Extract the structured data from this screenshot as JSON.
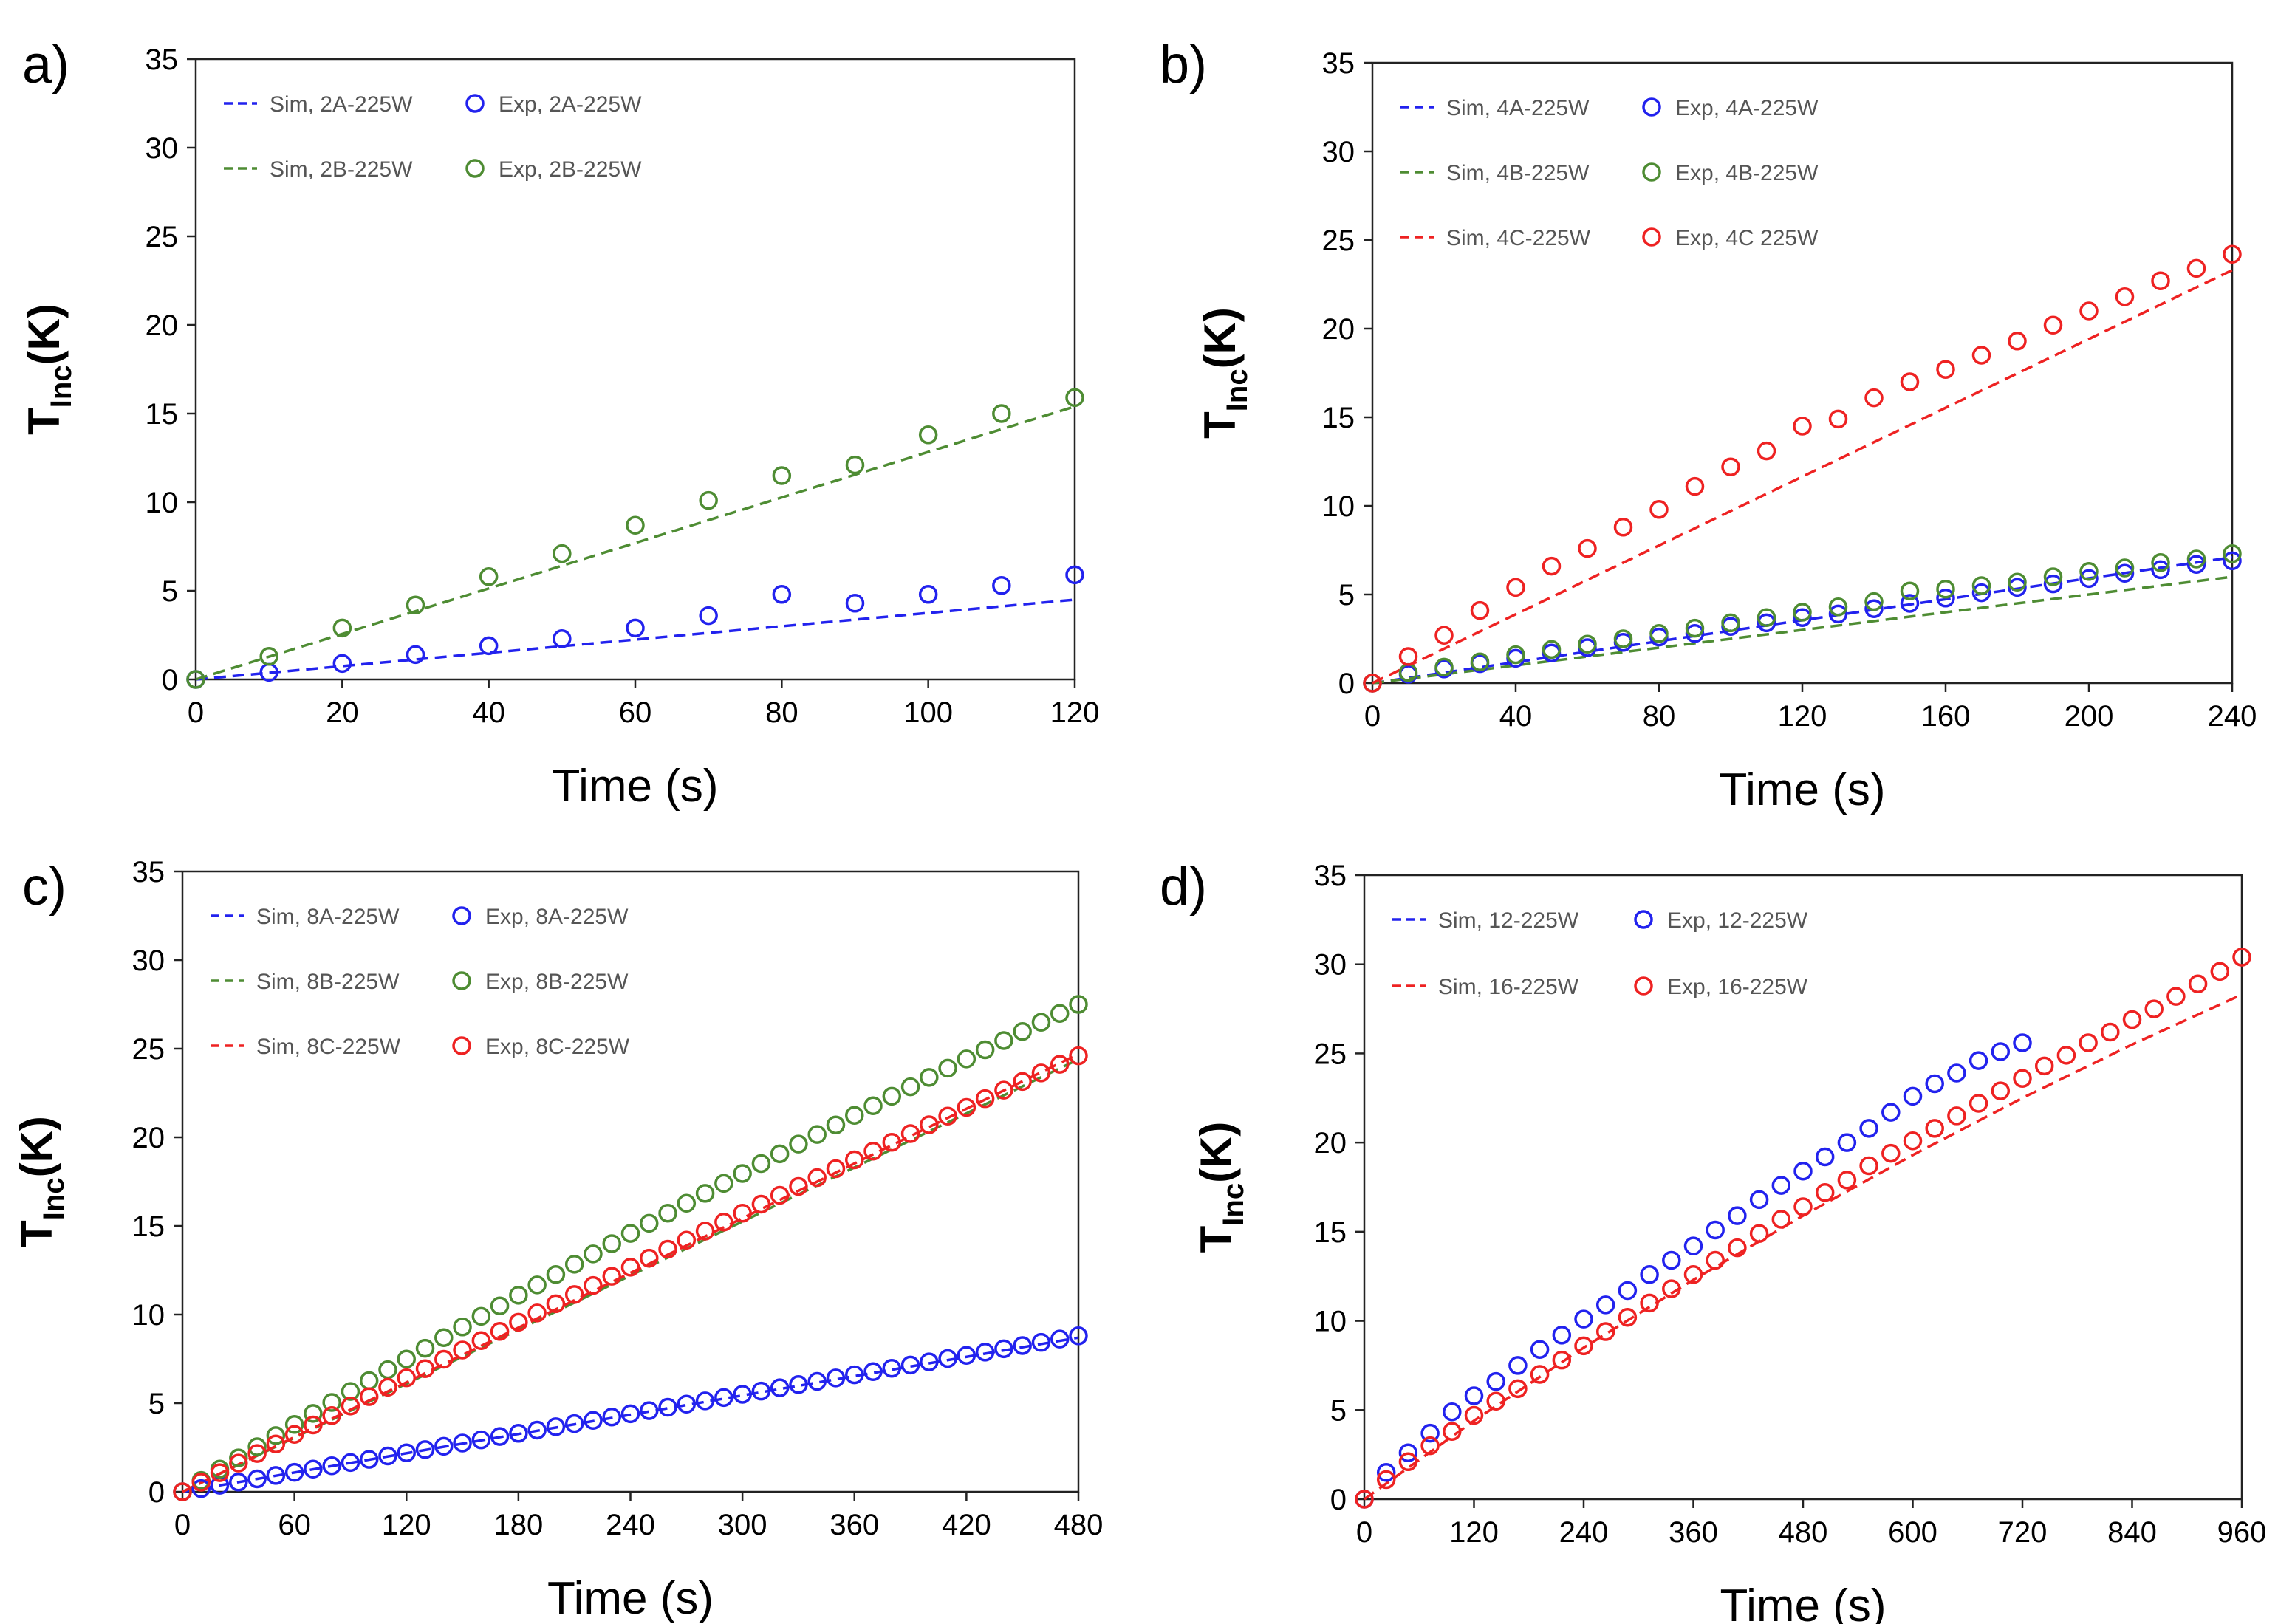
{
  "chart_data": [
    {
      "type": "scatter",
      "panel_label": "a)",
      "title": "",
      "xlabel": "Time (s)",
      "ylabel": {
        "main": "T",
        "sub": "Inc",
        "rest": "(K)"
      },
      "xlim": [
        0,
        120
      ],
      "ylim": [
        0,
        35
      ],
      "xticks": [
        0,
        20,
        40,
        60,
        80,
        100,
        120
      ],
      "yticks": [
        0,
        5,
        10,
        15,
        20,
        25,
        30,
        35
      ],
      "legend_location": "top-left",
      "series": [
        {
          "name": "Sim, 2A-225W",
          "kind": "line",
          "color": "#2222ee",
          "x": [
            0,
            120
          ],
          "y": [
            0,
            4.5
          ]
        },
        {
          "name": "Exp, 2A-225W",
          "kind": "points",
          "color": "#2222ee",
          "x": [
            0,
            10,
            20,
            30,
            40,
            50,
            60,
            70,
            80,
            90,
            100,
            110,
            120
          ],
          "y": [
            0,
            0.4,
            0.9,
            1.4,
            1.9,
            2.3,
            2.9,
            3.6,
            4.8,
            4.3,
            4.8,
            5.3,
            5.9
          ]
        },
        {
          "name": "Sim, 2B-225W",
          "kind": "line",
          "color": "#4e8c33",
          "x": [
            0,
            120
          ],
          "y": [
            0,
            15.4
          ]
        },
        {
          "name": "Exp, 2B-225W",
          "kind": "points",
          "color": "#4e8c33",
          "x": [
            0,
            10,
            20,
            30,
            40,
            50,
            60,
            70,
            80,
            90,
            100,
            110,
            120
          ],
          "y": [
            0,
            1.3,
            2.9,
            4.2,
            5.8,
            7.1,
            8.7,
            10.1,
            11.5,
            12.1,
            13.8,
            15.0,
            15.9
          ]
        }
      ]
    },
    {
      "type": "scatter",
      "panel_label": "b)",
      "title": "",
      "xlabel": "Time (s)",
      "ylabel": {
        "main": "T",
        "sub": "Inc",
        "rest": "(K)"
      },
      "xlim": [
        0,
        240
      ],
      "ylim": [
        0,
        35
      ],
      "xticks": [
        0,
        40,
        80,
        120,
        160,
        200,
        240
      ],
      "yticks": [
        0,
        5,
        10,
        15,
        20,
        25,
        30,
        35
      ],
      "legend_location": "top-left",
      "series": [
        {
          "name": "Sim, 4A-225W",
          "kind": "line",
          "color": "#2222ee",
          "x": [
            0,
            240
          ],
          "y": [
            0,
            7.1
          ]
        },
        {
          "name": "Exp, 4A-225W",
          "kind": "points",
          "color": "#2222ee",
          "x": [
            0,
            10,
            20,
            30,
            40,
            50,
            60,
            70,
            80,
            90,
            100,
            110,
            120,
            130,
            140,
            150,
            160,
            170,
            180,
            190,
            200,
            210,
            220,
            230,
            240
          ],
          "y": [
            0,
            0.5,
            0.8,
            1.1,
            1.4,
            1.7,
            2.0,
            2.3,
            2.6,
            2.8,
            3.2,
            3.4,
            3.7,
            3.9,
            4.2,
            4.5,
            4.8,
            5.1,
            5.4,
            5.6,
            5.9,
            6.2,
            6.4,
            6.7,
            6.9
          ]
        },
        {
          "name": "Sim, 4B-225W",
          "kind": "line",
          "color": "#4e8c33",
          "x": [
            0,
            240
          ],
          "y": [
            0,
            6.0
          ]
        },
        {
          "name": "Exp, 4B-225W",
          "kind": "points",
          "color": "#4e8c33",
          "x": [
            0,
            10,
            20,
            30,
            40,
            50,
            60,
            70,
            80,
            90,
            100,
            110,
            120,
            130,
            140,
            150,
            160,
            170,
            180,
            190,
            200,
            210,
            220,
            230,
            240
          ],
          "y": [
            0,
            0.6,
            0.9,
            1.2,
            1.6,
            1.9,
            2.2,
            2.5,
            2.8,
            3.1,
            3.4,
            3.7,
            4.0,
            4.3,
            4.6,
            5.2,
            5.3,
            5.5,
            5.7,
            6.0,
            6.3,
            6.5,
            6.8,
            7.0,
            7.3
          ]
        },
        {
          "name": "Sim, 4C-225W",
          "kind": "line",
          "color": "#ee2222",
          "x": [
            0,
            240
          ],
          "y": [
            0,
            23.3
          ]
        },
        {
          "name": "Exp, 4C 225W",
          "kind": "points",
          "color": "#ee2222",
          "x": [
            0,
            10,
            20,
            30,
            40,
            50,
            60,
            70,
            80,
            90,
            100,
            110,
            120,
            130,
            140,
            150,
            160,
            170,
            180,
            190,
            200,
            210,
            220,
            230,
            240
          ],
          "y": [
            0,
            1.5,
            2.7,
            4.1,
            5.4,
            6.6,
            7.6,
            8.8,
            9.8,
            11.1,
            12.2,
            13.1,
            14.5,
            14.9,
            16.1,
            17.0,
            17.7,
            18.5,
            19.3,
            20.2,
            21.0,
            21.8,
            22.7,
            23.4,
            24.2
          ]
        }
      ]
    },
    {
      "type": "scatter",
      "panel_label": "c)",
      "title": "",
      "xlabel": "Time (s)",
      "ylabel": {
        "main": "T",
        "sub": "Inc",
        "rest": "(K)"
      },
      "xlim": [
        0,
        480
      ],
      "ylim": [
        0,
        35
      ],
      "xticks": [
        0,
        60,
        120,
        180,
        240,
        300,
        360,
        420,
        480
      ],
      "yticks": [
        0,
        5,
        10,
        15,
        20,
        25,
        30,
        35
      ],
      "legend_location": "top-left",
      "series": [
        {
          "name": "Sim, 8A-225W",
          "kind": "line",
          "color": "#2222ee",
          "x": [
            0,
            480
          ],
          "y": [
            0,
            8.7
          ]
        },
        {
          "name": "Exp, 8A-225W",
          "kind": "points",
          "color": "#2222ee",
          "x_start": 0,
          "x_step": 10,
          "y_end": 8.8,
          "y_shape": "linear"
        },
        {
          "name": "Sim, 8B-225W",
          "kind": "line",
          "color": "#4e8c33",
          "x": [
            0,
            480
          ],
          "y": [
            0,
            24.4
          ]
        },
        {
          "name": "Exp, 8B-225W",
          "kind": "points",
          "color": "#4e8c33",
          "x_start": 0,
          "x_step": 10,
          "y_end": 27.5,
          "y_shape": "concave"
        },
        {
          "name": "Sim, 8C-225W",
          "kind": "line",
          "color": "#ee2222",
          "x": [
            0,
            480
          ],
          "y": [
            0,
            24.7
          ]
        },
        {
          "name": "Exp, 8C-225W",
          "kind": "points",
          "color": "#ee2222",
          "x_start": 0,
          "x_step": 10,
          "y_end": 24.6,
          "y_shape": "slightly-concave"
        }
      ]
    },
    {
      "type": "scatter",
      "panel_label": "d)",
      "title": "",
      "xlabel": "Time (s)",
      "ylabel": {
        "main": "T",
        "sub": "Inc",
        "rest": "(K)"
      },
      "xlim": [
        0,
        960
      ],
      "ylim": [
        0,
        35
      ],
      "xticks": [
        0,
        120,
        240,
        360,
        480,
        600,
        720,
        840,
        960
      ],
      "yticks": [
        0,
        5,
        10,
        15,
        20,
        25,
        30,
        35
      ],
      "legend_location": "top-left",
      "series": [
        {
          "name": "Sim, 12-225W",
          "kind": "line",
          "color": "#2222ee",
          "x": [],
          "y": []
        },
        {
          "name": "Exp, 12-225W",
          "kind": "points",
          "color": "#2222ee",
          "x": [
            0,
            24,
            48,
            72,
            96,
            120,
            144,
            168,
            192,
            216,
            240,
            264,
            288,
            312,
            336,
            360,
            384,
            408,
            432,
            456,
            480,
            504,
            528,
            552,
            576,
            600,
            624,
            648,
            672,
            696,
            720
          ],
          "y": [
            0,
            1.5,
            2.6,
            3.7,
            4.9,
            5.8,
            6.6,
            7.5,
            8.4,
            9.2,
            10.1,
            10.9,
            11.7,
            12.6,
            13.4,
            14.2,
            15.1,
            15.9,
            16.8,
            17.6,
            18.4,
            19.2,
            20.0,
            20.8,
            21.7,
            22.6,
            23.3,
            23.9,
            24.6,
            25.1,
            25.6
          ]
        },
        {
          "name": "Sim, 16-225W",
          "kind": "line",
          "color": "#ee2222",
          "x": [
            0,
            120,
            240,
            360,
            480,
            600,
            720,
            840,
            960
          ],
          "y": [
            0,
            4.4,
            8.5,
            12.3,
            15.9,
            19.3,
            22.5,
            25.5,
            28.3
          ]
        },
        {
          "name": "Exp, 16-225W",
          "kind": "points",
          "color": "#ee2222",
          "x": [
            0,
            24,
            48,
            72,
            96,
            120,
            144,
            168,
            192,
            216,
            240,
            264,
            288,
            312,
            336,
            360,
            384,
            408,
            432,
            456,
            480,
            504,
            528,
            552,
            576,
            600,
            624,
            648,
            672,
            696,
            720,
            744,
            768,
            792,
            816,
            840,
            864,
            888,
            912,
            936,
            960
          ],
          "y": [
            0,
            1.1,
            2.1,
            3.0,
            3.8,
            4.7,
            5.5,
            6.2,
            7.0,
            7.8,
            8.6,
            9.4,
            10.2,
            11.0,
            11.8,
            12.6,
            13.4,
            14.1,
            14.9,
            15.7,
            16.4,
            17.2,
            17.9,
            18.7,
            19.4,
            20.1,
            20.8,
            21.5,
            22.2,
            22.9,
            23.6,
            24.3,
            24.9,
            25.6,
            26.2,
            26.9,
            27.5,
            28.2,
            28.9,
            29.6,
            30.4
          ]
        }
      ]
    }
  ]
}
